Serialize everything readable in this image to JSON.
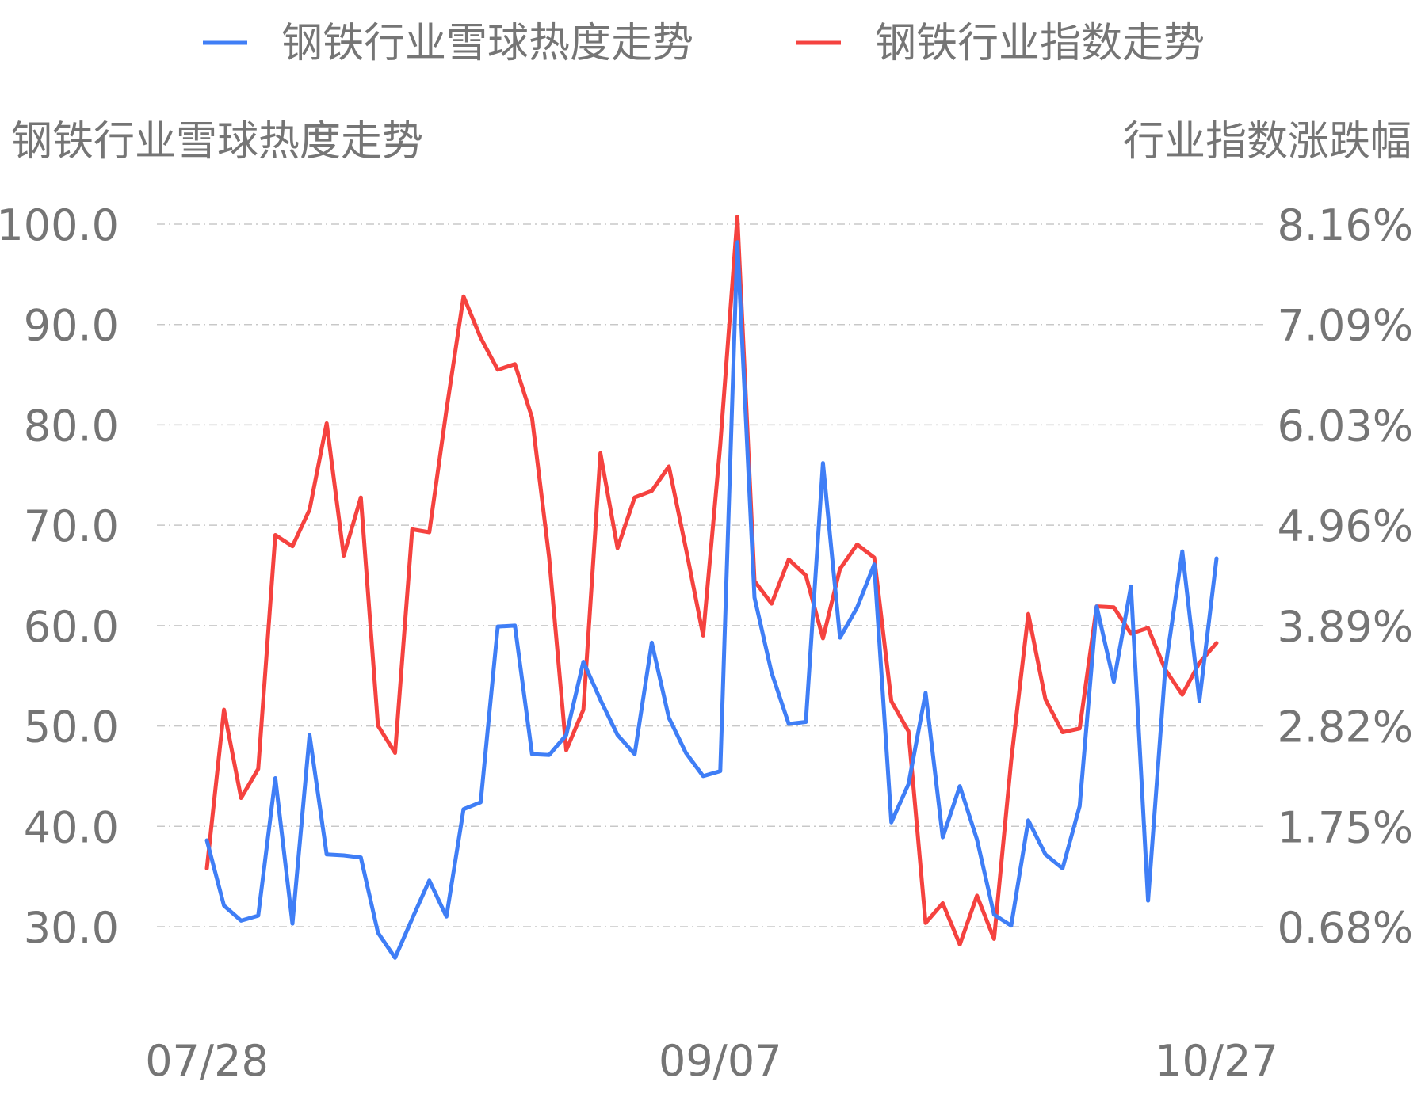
{
  "chart_data": {
    "type": "line",
    "legend": {
      "placement": "top-center",
      "items": [
        "钢铁行业雪球热度走势",
        "钢铁行业指数走势"
      ]
    },
    "left_axis_title": "钢铁行业雪球热度走势",
    "right_axis_title": "行业指数涨跌幅",
    "left_ticks": [
      "30.0",
      "40.0",
      "50.0",
      "60.0",
      "70.0",
      "80.0",
      "90.0",
      "100.0"
    ],
    "right_ticks": [
      "0.68%",
      "1.75%",
      "2.82%",
      "3.89%",
      "4.96%",
      "6.03%",
      "7.09%",
      "8.16%"
    ],
    "x_tick_labels": [
      "07/28",
      "09/07",
      "10/27"
    ],
    "ylim_left": [
      30.0,
      100.0
    ],
    "ylim_right": [
      0.68,
      8.16
    ],
    "grid": true,
    "series": [
      {
        "name": "钢铁行业雪球热度走势",
        "axis": "left",
        "color": "#3f7ef6",
        "values": [
          38.6,
          32.1,
          30.6,
          31.1,
          44.8,
          30.3,
          49.1,
          37.2,
          37.1,
          36.9,
          29.4,
          26.9,
          30.8,
          34.6,
          31.0,
          41.7,
          42.4,
          59.9,
          60.0,
          47.2,
          47.1,
          49.1,
          56.4,
          52.6,
          49.1,
          47.2,
          58.3,
          50.8,
          47.3,
          45.0,
          45.5,
          98.2,
          62.8,
          55.3,
          50.2,
          50.4,
          76.2,
          58.8,
          61.8,
          66.1,
          40.4,
          44.2,
          53.3,
          38.9,
          44.0,
          38.7,
          31.2,
          30.1,
          40.6,
          37.2,
          35.8,
          42.0,
          61.9,
          54.4,
          63.9,
          32.6,
          55.6,
          67.4,
          52.5,
          66.7
        ]
      },
      {
        "name": "钢铁行业指数走势",
        "axis": "right",
        "color": "#f5423f",
        "values": [
          1.3,
          2.99,
          2.05,
          2.36,
          4.85,
          4.73,
          5.12,
          6.04,
          4.63,
          5.25,
          2.82,
          2.53,
          4.91,
          4.88,
          6.18,
          7.39,
          6.95,
          6.61,
          6.67,
          6.1,
          4.61,
          2.56,
          2.99,
          5.72,
          4.71,
          5.25,
          5.32,
          5.58,
          4.7,
          3.78,
          5.81,
          8.24,
          4.36,
          4.12,
          4.59,
          4.42,
          3.75,
          4.49,
          4.75,
          4.61,
          3.08,
          2.76,
          0.72,
          0.93,
          0.49,
          1.01,
          0.55,
          2.45,
          4.01,
          3.1,
          2.75,
          2.79,
          4.09,
          4.08,
          3.8,
          3.86,
          3.42,
          3.15,
          3.49,
          3.7
        ]
      }
    ],
    "font_family": "Liberation Sans"
  }
}
